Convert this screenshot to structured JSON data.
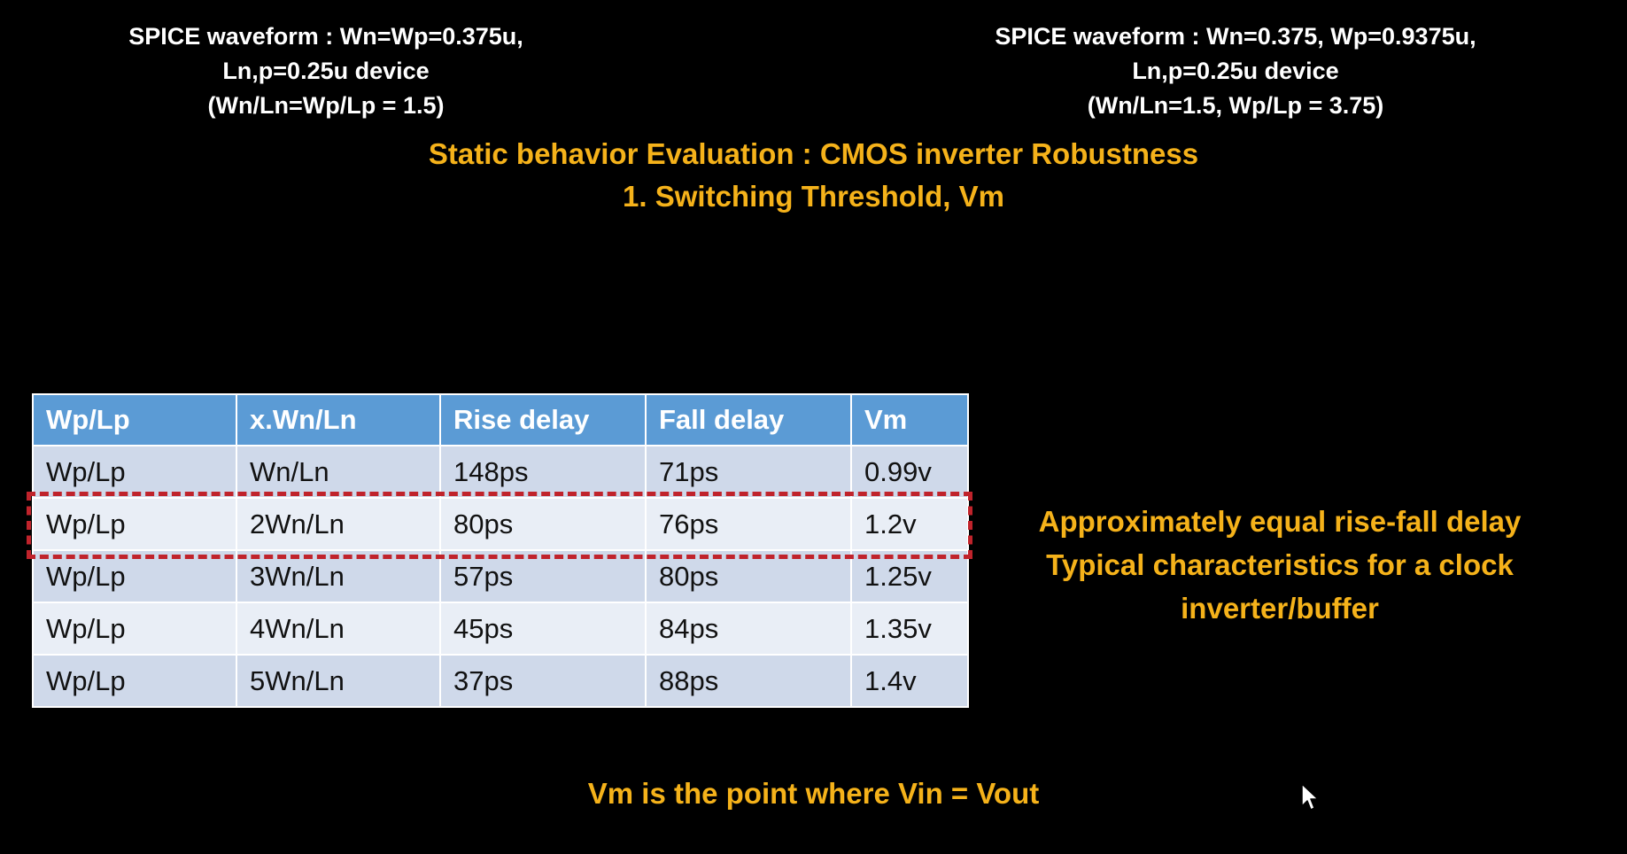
{
  "captions": {
    "left": [
      "SPICE waveform : Wn=Wp=0.375u,",
      "Ln,p=0.25u device",
      "(Wn/Ln=Wp/Lp = 1.5)"
    ],
    "right": [
      "SPICE waveform : Wn=0.375, Wp=0.9375u,",
      "Ln,p=0.25u device",
      "(Wn/Ln=1.5, Wp/Lp = 3.75)"
    ]
  },
  "title": {
    "line1": "Static behavior Evaluation : CMOS inverter Robustness",
    "line2": "1. Switching Threshold, Vm"
  },
  "table": {
    "headers": [
      "Wp/Lp",
      "x.Wn/Ln",
      "Rise delay",
      "Fall delay",
      "Vm"
    ],
    "rows": [
      [
        "Wp/Lp",
        "Wn/Ln",
        "148ps",
        "71ps",
        "0.99v"
      ],
      [
        "Wp/Lp",
        "2Wn/Ln",
        "80ps",
        "76ps",
        "1.2v"
      ],
      [
        "Wp/Lp",
        "3Wn/Ln",
        "57ps",
        "80ps",
        "1.25v"
      ],
      [
        "Wp/Lp",
        "4Wn/Ln",
        "45ps",
        "84ps",
        "1.35v"
      ],
      [
        "Wp/Lp",
        "5Wn/Ln",
        "37ps",
        "88ps",
        "1.4v"
      ]
    ],
    "highlighted_row": 1,
    "header_color": "#5b9bd5",
    "highlight_color": "#c0232b"
  },
  "side_note": [
    "Approximately equal rise-fall delay",
    "Typical characteristics for a clock",
    "inverter/buffer"
  ],
  "footnote": "Vm is the point where Vin = Vout",
  "colors": {
    "background": "#000000",
    "accent": "#f5b21a",
    "caption": "#ffffff"
  },
  "icons": {
    "cursor": "mouse-pointer-icon"
  }
}
